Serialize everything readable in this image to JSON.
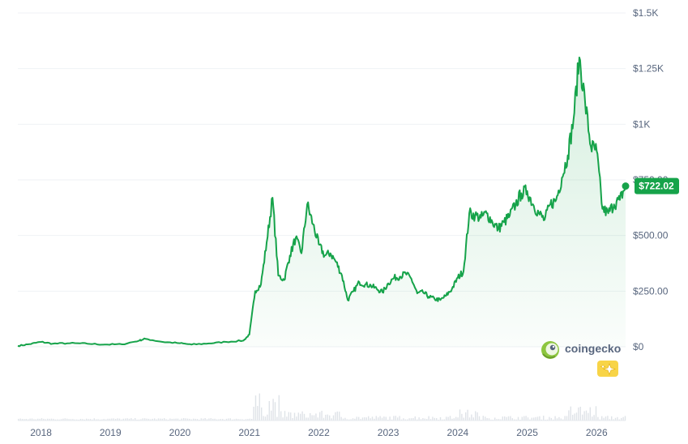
{
  "chart_data": {
    "type": "area",
    "ylim": [
      0,
      1500
    ],
    "y_ticks": [
      {
        "value": 0,
        "label": "$0"
      },
      {
        "value": 250,
        "label": "$250.00"
      },
      {
        "value": 500,
        "label": "$500.00"
      },
      {
        "value": 750,
        "label": "$750.00"
      },
      {
        "value": 1000,
        "label": "$1K"
      },
      {
        "value": 1250,
        "label": "$1.25K"
      },
      {
        "value": 1500,
        "label": "$1.5K"
      }
    ],
    "x_ticks": [
      "2018",
      "2019",
      "2020",
      "2021",
      "2022",
      "2023",
      "2024",
      "2025",
      "2026"
    ],
    "x_range": [
      "2017-09",
      "2026-06"
    ],
    "series": [
      {
        "color": "#16a34a",
        "points": [
          [
            "2017-09",
            4
          ],
          [
            "2017-11",
            12
          ],
          [
            "2018-01",
            22
          ],
          [
            "2018-03",
            14
          ],
          [
            "2018-06",
            16
          ],
          [
            "2018-09",
            14
          ],
          [
            "2018-12",
            10
          ],
          [
            "2019-03",
            11
          ],
          [
            "2019-06",
            28
          ],
          [
            "2019-07",
            36
          ],
          [
            "2019-10",
            22
          ],
          [
            "2020-01",
            16
          ],
          [
            "2020-03",
            10
          ],
          [
            "2020-06",
            15
          ],
          [
            "2020-09",
            22
          ],
          [
            "2020-12",
            28
          ],
          [
            "2021-01",
            55
          ],
          [
            "2021-02",
            250
          ],
          [
            "2021-03",
            280
          ],
          [
            "2021-04",
            470
          ],
          [
            "2021-05",
            670
          ],
          [
            "2021-06",
            320
          ],
          [
            "2021-07",
            300
          ],
          [
            "2021-08",
            410
          ],
          [
            "2021-09",
            490
          ],
          [
            "2021-10",
            420
          ],
          [
            "2021-11",
            640
          ],
          [
            "2021-12",
            550
          ],
          [
            "2022-01",
            460
          ],
          [
            "2022-02",
            410
          ],
          [
            "2022-03",
            420
          ],
          [
            "2022-04",
            380
          ],
          [
            "2022-05",
            320
          ],
          [
            "2022-06",
            210
          ],
          [
            "2022-07",
            250
          ],
          [
            "2022-08",
            290
          ],
          [
            "2022-09",
            280
          ],
          [
            "2022-10",
            275
          ],
          [
            "2022-11",
            260
          ],
          [
            "2022-12",
            245
          ],
          [
            "2023-01",
            285
          ],
          [
            "2023-02",
            310
          ],
          [
            "2023-03",
            315
          ],
          [
            "2023-04",
            330
          ],
          [
            "2023-05",
            305
          ],
          [
            "2023-06",
            240
          ],
          [
            "2023-07",
            245
          ],
          [
            "2023-08",
            225
          ],
          [
            "2023-09",
            215
          ],
          [
            "2023-10",
            210
          ],
          [
            "2023-11",
            230
          ],
          [
            "2023-12",
            260
          ],
          [
            "2024-01",
            310
          ],
          [
            "2024-02",
            340
          ],
          [
            "2024-03",
            600
          ],
          [
            "2024-04",
            590
          ],
          [
            "2024-05",
            580
          ],
          [
            "2024-06",
            600
          ],
          [
            "2024-07",
            560
          ],
          [
            "2024-08",
            530
          ],
          [
            "2024-09",
            560
          ],
          [
            "2024-10",
            590
          ],
          [
            "2024-11",
            640
          ],
          [
            "2024-12",
            690
          ],
          [
            "2025-01",
            700
          ],
          [
            "2025-02",
            640
          ],
          [
            "2025-03",
            600
          ],
          [
            "2025-04",
            570
          ],
          [
            "2025-05",
            640
          ],
          [
            "2025-06",
            660
          ],
          [
            "2025-07",
            760
          ],
          [
            "2025-08",
            860
          ],
          [
            "2025-09",
            1020
          ],
          [
            "2025-10",
            1300
          ],
          [
            "2025-11",
            1100
          ],
          [
            "2025-12",
            900
          ],
          [
            "2026-01",
            880
          ],
          [
            "2026-02",
            620
          ],
          [
            "2026-03",
            600
          ],
          [
            "2026-04",
            640
          ],
          [
            "2026-05",
            660
          ],
          [
            "2026-06",
            722.02
          ]
        ]
      }
    ],
    "last_value_label": "$722.02",
    "grid": true
  },
  "brand": {
    "name": "coingecko",
    "logo_icon": "gecko-icon",
    "badge_icon": "sparkle-icon"
  },
  "colors": {
    "line": "#16a34a",
    "badge_bg": "#16a34a",
    "badge_icon_bg": "#f8d447"
  }
}
